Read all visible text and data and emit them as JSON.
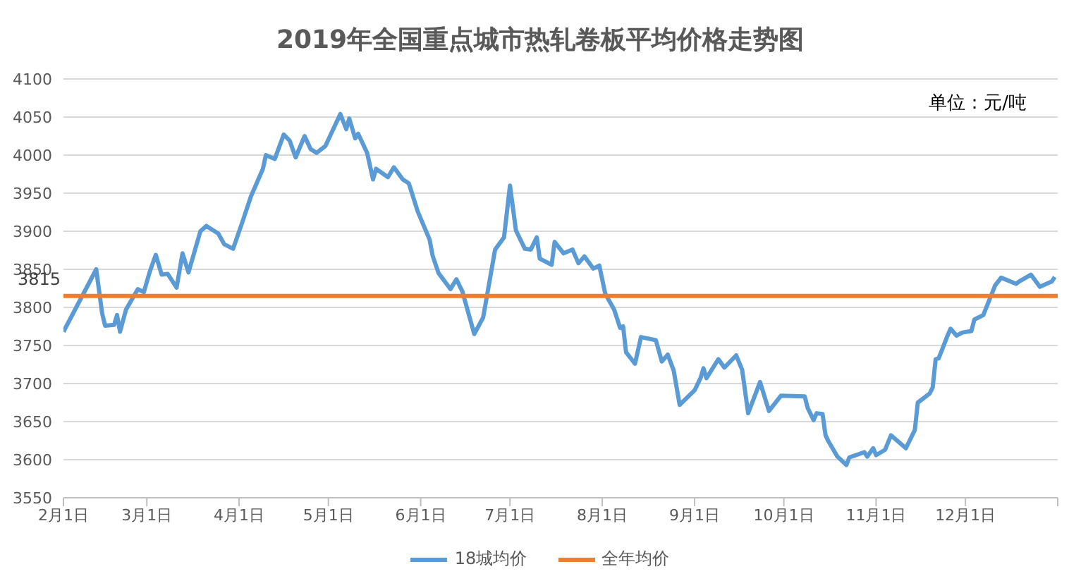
{
  "chart_data": {
    "type": "line",
    "title": "2019年全国重点城市热轧卷板平均价格走势图",
    "annotations": [
      "单位：元/吨"
    ],
    "xlim": [
      "2019-02-01",
      "2020-01-01"
    ],
    "xticks": [
      {
        "value": "2019-02-01",
        "label": "2月1日"
      },
      {
        "value": "2019-03-01",
        "label": "3月1日"
      },
      {
        "value": "2019-04-01",
        "label": "4月1日"
      },
      {
        "value": "2019-05-01",
        "label": "5月1日"
      },
      {
        "value": "2019-06-01",
        "label": "6月1日"
      },
      {
        "value": "2019-07-01",
        "label": "7月1日"
      },
      {
        "value": "2019-08-01",
        "label": "8月1日"
      },
      {
        "value": "2019-09-01",
        "label": "9月1日"
      },
      {
        "value": "2019-10-01",
        "label": "10月1日"
      },
      {
        "value": "2019-11-01",
        "label": "11月1日"
      },
      {
        "value": "2019-12-01",
        "label": "12月1日"
      },
      {
        "value": "2020-01-01",
        "label": null
      }
    ],
    "ylim": [
      3550,
      4100
    ],
    "yticks": [
      3550,
      3600,
      3650,
      3700,
      3750,
      3800,
      3850,
      3900,
      3950,
      4000,
      4050,
      4100
    ],
    "grid": "y",
    "legend": "bottom",
    "marker": "none",
    "line_style": "solid",
    "series": [
      {
        "name": "18城均价",
        "color": "#5b9bd5",
        "x": [
          "2019-02-01",
          "2019-02-12",
          "2019-02-14",
          "2019-02-15",
          "2019-02-18",
          "2019-02-19",
          "2019-02-20",
          "2019-02-22",
          "2019-02-26",
          "2019-02-28",
          "2019-03-02",
          "2019-03-04",
          "2019-03-06",
          "2019-03-08",
          "2019-03-11",
          "2019-03-13",
          "2019-03-15",
          "2019-03-19",
          "2019-03-21",
          "2019-03-25",
          "2019-03-27",
          "2019-03-30",
          "2019-04-02",
          "2019-04-05",
          "2019-04-09",
          "2019-04-10",
          "2019-04-13",
          "2019-04-16",
          "2019-04-18",
          "2019-04-20",
          "2019-04-23",
          "2019-04-25",
          "2019-04-27",
          "2019-04-30",
          "2019-05-05",
          "2019-05-07",
          "2019-05-08",
          "2019-05-10",
          "2019-05-11",
          "2019-05-14",
          "2019-05-16",
          "2019-05-17",
          "2019-05-21",
          "2019-05-23",
          "2019-05-26",
          "2019-05-28",
          "2019-05-31",
          "2019-06-04",
          "2019-06-05",
          "2019-06-07",
          "2019-06-11",
          "2019-06-13",
          "2019-06-15",
          "2019-06-19",
          "2019-06-22",
          "2019-06-26",
          "2019-06-29",
          "2019-07-01",
          "2019-07-03",
          "2019-07-06",
          "2019-07-08",
          "2019-07-10",
          "2019-07-11",
          "2019-07-15",
          "2019-07-16",
          "2019-07-19",
          "2019-07-22",
          "2019-07-24",
          "2019-07-26",
          "2019-07-29",
          "2019-07-31",
          "2019-08-02",
          "2019-08-05",
          "2019-08-07",
          "2019-08-08",
          "2019-08-09",
          "2019-08-12",
          "2019-08-14",
          "2019-08-19",
          "2019-08-21",
          "2019-08-23",
          "2019-08-25",
          "2019-08-27",
          "2019-09-01",
          "2019-09-03",
          "2019-09-04",
          "2019-09-05",
          "2019-09-09",
          "2019-09-11",
          "2019-09-15",
          "2019-09-17",
          "2019-09-19",
          "2019-09-23",
          "2019-09-26",
          "2019-09-30",
          "2019-10-08",
          "2019-10-09",
          "2019-10-11",
          "2019-10-12",
          "2019-10-14",
          "2019-10-15",
          "2019-10-16",
          "2019-10-19",
          "2019-10-22",
          "2019-10-23",
          "2019-10-26",
          "2019-10-28",
          "2019-10-29",
          "2019-10-31",
          "2019-11-01",
          "2019-11-04",
          "2019-11-06",
          "2019-11-11",
          "2019-11-14",
          "2019-11-15",
          "2019-11-19",
          "2019-11-20",
          "2019-11-21",
          "2019-11-22",
          "2019-11-25",
          "2019-11-26",
          "2019-11-28",
          "2019-11-30",
          "2019-12-03",
          "2019-12-04",
          "2019-12-07",
          "2019-12-11",
          "2019-12-13",
          "2019-12-18",
          "2019-12-19",
          "2019-12-23",
          "2019-12-26",
          "2019-12-30",
          "2019-12-31"
        ],
        "values": [
          3768,
          3850,
          3792,
          3776,
          3777,
          3790,
          3768,
          3797,
          3824,
          3820,
          3847,
          3869,
          3843,
          3844,
          3826,
          3871,
          3846,
          3900,
          3907,
          3897,
          3883,
          3877,
          3911,
          3946,
          3982,
          4000,
          3995,
          4027,
          4019,
          3997,
          4025,
          4008,
          4003,
          4012,
          4054,
          4034,
          4048,
          4022,
          4028,
          4003,
          3968,
          3982,
          3971,
          3984,
          3968,
          3963,
          3926,
          3889,
          3868,
          3845,
          3824,
          3837,
          3821,
          3765,
          3787,
          3876,
          3892,
          3960,
          3901,
          3877,
          3876,
          3892,
          3864,
          3856,
          3886,
          3871,
          3876,
          3858,
          3867,
          3851,
          3855,
          3818,
          3797,
          3773,
          3775,
          3741,
          3726,
          3761,
          3757,
          3729,
          3738,
          3717,
          3672,
          3691,
          3707,
          3720,
          3707,
          3732,
          3721,
          3737,
          3718,
          3661,
          3702,
          3664,
          3684,
          3683,
          3668,
          3652,
          3661,
          3660,
          3632,
          3624,
          3604,
          3593,
          3603,
          3607,
          3610,
          3604,
          3615,
          3606,
          3613,
          3632,
          3615,
          3639,
          3675,
          3687,
          3695,
          3732,
          3733,
          3763,
          3772,
          3763,
          3767,
          3769,
          3784,
          3790,
          3829,
          3839,
          3831,
          3834,
          3843,
          3827,
          3834,
          3840
        ]
      },
      {
        "name": "全年均价",
        "color": "#ed7d31",
        "x": [
          "2019-02-01",
          "2020-01-01"
        ],
        "values": [
          3815,
          3815
        ],
        "value_labels": [
          "3815",
          null
        ]
      }
    ]
  }
}
